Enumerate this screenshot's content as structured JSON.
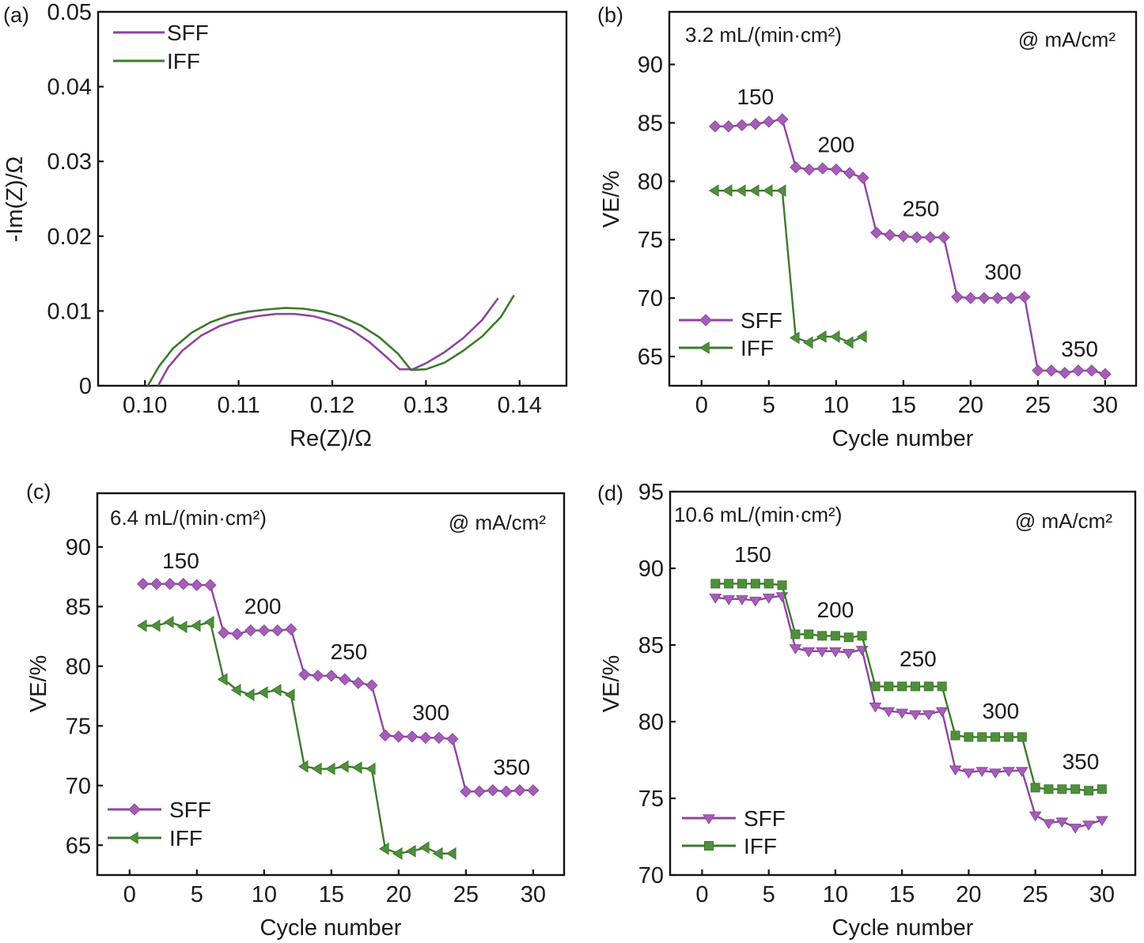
{
  "colors": {
    "SFF": "#8e44a0",
    "SFF_marker": "#a35fb5",
    "IFF": "#3c7a2c",
    "IFF_marker": "#4f8f3c",
    "axis": "#111111"
  },
  "chart_data": [
    {
      "panel": "(a)",
      "type": "line",
      "title": "",
      "xlabel": "Re(Z)/Ω",
      "ylabel": "-Im(Z)/Ω",
      "xlim": [
        0.095,
        0.145
      ],
      "ylim": [
        0,
        0.05
      ],
      "xticks": [
        0.1,
        0.11,
        0.12,
        0.13,
        0.14
      ],
      "xtick_labels": [
        "0.10",
        "0.11",
        "0.12",
        "0.13",
        "0.14"
      ],
      "yticks": [
        0,
        0.01,
        0.02,
        0.03,
        0.04,
        0.05
      ],
      "ytick_labels": [
        "0",
        "0.01",
        "0.02",
        "0.03",
        "0.04",
        "0.05"
      ],
      "grid": false,
      "legend": "top-left",
      "series": [
        {
          "name": "SFF",
          "marker": "none",
          "x": [
            0.1014,
            0.1025,
            0.104,
            0.106,
            0.108,
            0.11,
            0.112,
            0.114,
            0.116,
            0.118,
            0.12,
            0.122,
            0.124,
            0.126,
            0.1272,
            0.1286,
            0.13,
            0.132,
            0.134,
            0.136,
            0.1377
          ],
          "y": [
            0.0,
            0.0025,
            0.0047,
            0.0067,
            0.008,
            0.0088,
            0.0093,
            0.0096,
            0.0096,
            0.0093,
            0.0086,
            0.0075,
            0.0058,
            0.0036,
            0.0022,
            0.0022,
            0.003,
            0.0045,
            0.0064,
            0.0088,
            0.0117
          ]
        },
        {
          "name": "IFF",
          "marker": "none",
          "x": [
            0.1003,
            0.1015,
            0.103,
            0.105,
            0.107,
            0.109,
            0.111,
            0.113,
            0.115,
            0.117,
            0.119,
            0.121,
            0.123,
            0.125,
            0.127,
            0.1284,
            0.13,
            0.132,
            0.134,
            0.136,
            0.138,
            0.1394
          ],
          "y": [
            0.0,
            0.0026,
            0.005,
            0.0071,
            0.0085,
            0.0094,
            0.0099,
            0.0102,
            0.0104,
            0.0103,
            0.0099,
            0.0092,
            0.0081,
            0.0065,
            0.0043,
            0.0021,
            0.0022,
            0.0031,
            0.0047,
            0.0066,
            0.0092,
            0.0121
          ]
        }
      ]
    },
    {
      "panel": "(b)",
      "type": "line",
      "title": "",
      "annotation_flow": "3.2 mL/(min·cm²)",
      "annotation_current": "@ mA/cm²",
      "xlabel": "Cycle number",
      "ylabel": "VE/%",
      "xlim": [
        -2.4,
        32.3
      ],
      "ylim": [
        62.5,
        94.5
      ],
      "xticks": [
        0,
        5,
        10,
        15,
        20,
        25,
        30
      ],
      "xtick_labels": [
        "0",
        "5",
        "10",
        "15",
        "20",
        "25",
        "30"
      ],
      "yticks": [
        65,
        70,
        75,
        80,
        85,
        90
      ],
      "ytick_labels": [
        "65",
        "70",
        "75",
        "80",
        "85",
        "90"
      ],
      "grid": false,
      "legend": "bottom-left",
      "step_labels": [
        {
          "text": "150",
          "x": 4.0,
          "y": 86.6
        },
        {
          "text": "200",
          "x": 10.0,
          "y": 82.5
        },
        {
          "text": "250",
          "x": 16.3,
          "y": 77.0
        },
        {
          "text": "300",
          "x": 22.4,
          "y": 71.6
        },
        {
          "text": "350",
          "x": 28.1,
          "y": 65.0
        }
      ],
      "series": [
        {
          "name": "SFF",
          "marker": "diamond",
          "x": [
            1,
            2,
            3,
            4,
            5,
            6,
            7,
            8,
            9,
            10,
            11,
            12,
            13,
            14,
            15,
            16,
            17,
            18,
            19,
            20,
            21,
            22,
            23,
            24,
            25,
            26,
            27,
            28,
            29,
            30
          ],
          "y": [
            84.7,
            84.7,
            84.8,
            84.9,
            85.1,
            85.3,
            81.2,
            81.0,
            81.1,
            81.0,
            80.7,
            80.3,
            75.6,
            75.4,
            75.3,
            75.2,
            75.2,
            75.2,
            70.1,
            70.0,
            70.0,
            70.0,
            70.0,
            70.1,
            63.8,
            63.8,
            63.6,
            63.8,
            63.8,
            63.5
          ]
        },
        {
          "name": "IFF",
          "marker": "triangle-left",
          "x": [
            1,
            2,
            3,
            4,
            5,
            6,
            7,
            8,
            9,
            10,
            11,
            12
          ],
          "y": [
            79.2,
            79.2,
            79.2,
            79.2,
            79.2,
            79.2,
            66.6,
            66.2,
            66.7,
            66.7,
            66.2,
            66.7
          ]
        }
      ]
    },
    {
      "panel": "(c)",
      "type": "line",
      "title": "",
      "annotation_flow": "6.4 mL/(min·cm²)",
      "annotation_current": "@ mA/cm²",
      "xlabel": "Cycle number",
      "ylabel": "VE/%",
      "xlim": [
        -2.4,
        32.3
      ],
      "ylim": [
        62.5,
        94.5
      ],
      "xticks": [
        0,
        5,
        10,
        15,
        20,
        25,
        30
      ],
      "xtick_labels": [
        "0",
        "5",
        "10",
        "15",
        "20",
        "25",
        "30"
      ],
      "yticks": [
        65,
        70,
        75,
        80,
        85,
        90
      ],
      "ytick_labels": [
        "65",
        "70",
        "75",
        "80",
        "85",
        "90"
      ],
      "grid": false,
      "legend": "bottom-left",
      "step_labels": [
        {
          "text": "150",
          "x": 3.8,
          "y": 88.2
        },
        {
          "text": "200",
          "x": 9.9,
          "y": 84.4
        },
        {
          "text": "250",
          "x": 16.3,
          "y": 80.6
        },
        {
          "text": "300",
          "x": 22.4,
          "y": 75.5
        },
        {
          "text": "350",
          "x": 28.4,
          "y": 70.9
        }
      ],
      "series": [
        {
          "name": "SFF",
          "marker": "diamond",
          "x": [
            1,
            2,
            3,
            4,
            5,
            6,
            7,
            8,
            9,
            10,
            11,
            12,
            13,
            14,
            15,
            16,
            17,
            18,
            19,
            20,
            21,
            22,
            23,
            24,
            25,
            26,
            27,
            28,
            29,
            30
          ],
          "y": [
            86.9,
            86.9,
            86.9,
            86.9,
            86.8,
            86.8,
            82.8,
            82.7,
            83.0,
            83.0,
            83.0,
            83.1,
            79.3,
            79.2,
            79.2,
            78.9,
            78.6,
            78.4,
            74.2,
            74.1,
            74.1,
            74.0,
            74.0,
            73.9,
            69.5,
            69.5,
            69.6,
            69.5,
            69.6,
            69.6
          ]
        },
        {
          "name": "IFF",
          "marker": "triangle-left",
          "x": [
            1,
            2,
            3,
            4,
            5,
            6,
            7,
            8,
            9,
            10,
            11,
            12,
            13,
            14,
            15,
            16,
            17,
            18,
            19,
            20,
            21,
            22,
            23,
            24
          ],
          "y": [
            83.4,
            83.4,
            83.7,
            83.3,
            83.4,
            83.7,
            78.9,
            78.0,
            77.6,
            77.8,
            78.0,
            77.6,
            71.6,
            71.4,
            71.4,
            71.6,
            71.5,
            71.4,
            64.7,
            64.3,
            64.5,
            64.8,
            64.3,
            64.3
          ]
        }
      ]
    },
    {
      "panel": "(d)",
      "type": "line",
      "title": "",
      "annotation_flow": "10.6 mL/(min·cm²)",
      "annotation_current": "@ mA/cm²",
      "xlabel": "Cycle number",
      "ylabel": "VE/%",
      "xlim": [
        -2.4,
        32.5
      ],
      "ylim": [
        70,
        95
      ],
      "xticks": [
        0,
        5,
        10,
        15,
        20,
        25,
        30
      ],
      "xtick_labels": [
        "0",
        "5",
        "10",
        "15",
        "20",
        "25",
        "30"
      ],
      "yticks": [
        70,
        75,
        80,
        85,
        90,
        95
      ],
      "ytick_labels": [
        "70",
        "75",
        "80",
        "85",
        "90",
        "95"
      ],
      "grid": false,
      "legend": "bottom-left",
      "step_labels": [
        {
          "text": "150",
          "x": 3.8,
          "y": 90.4
        },
        {
          "text": "200",
          "x": 10.0,
          "y": 86.8
        },
        {
          "text": "250",
          "x": 16.2,
          "y": 83.6
        },
        {
          "text": "300",
          "x": 22.4,
          "y": 80.2
        },
        {
          "text": "350",
          "x": 28.4,
          "y": 76.9
        }
      ],
      "series": [
        {
          "name": "SFF",
          "marker": "triangle-down",
          "x": [
            1,
            2,
            3,
            4,
            5,
            6,
            7,
            8,
            9,
            10,
            11,
            12,
            13,
            14,
            15,
            16,
            17,
            18,
            19,
            20,
            21,
            22,
            23,
            24,
            25,
            26,
            27,
            28,
            29,
            30
          ],
          "y": [
            88.1,
            88.0,
            88.0,
            87.9,
            88.1,
            88.2,
            84.8,
            84.6,
            84.6,
            84.6,
            84.5,
            84.7,
            81.0,
            80.7,
            80.6,
            80.5,
            80.5,
            80.7,
            76.9,
            76.7,
            76.8,
            76.7,
            76.8,
            76.8,
            73.9,
            73.4,
            73.5,
            73.1,
            73.3,
            73.6
          ]
        },
        {
          "name": "IFF",
          "marker": "square",
          "x": [
            1,
            2,
            3,
            4,
            5,
            6,
            7,
            8,
            9,
            10,
            11,
            12,
            13,
            14,
            15,
            16,
            17,
            18,
            19,
            20,
            21,
            22,
            23,
            24,
            25,
            26,
            27,
            28,
            29,
            30
          ],
          "y": [
            89.0,
            89.0,
            89.0,
            89.0,
            89.0,
            88.9,
            85.7,
            85.7,
            85.6,
            85.6,
            85.5,
            85.6,
            82.3,
            82.3,
            82.3,
            82.3,
            82.3,
            82.3,
            79.1,
            79.0,
            79.0,
            79.0,
            79.0,
            79.0,
            75.7,
            75.6,
            75.6,
            75.6,
            75.5,
            75.6
          ]
        }
      ]
    }
  ]
}
